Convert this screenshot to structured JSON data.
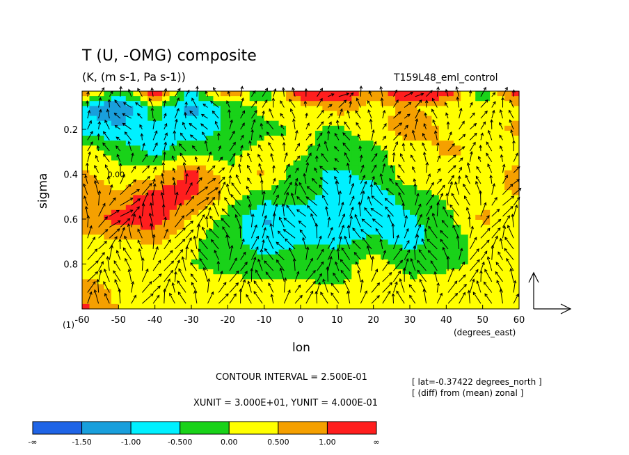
{
  "header": {
    "title": "T (U, -OMG) composite",
    "units": "(K, (m s-1, Pa s-1))",
    "run_name": "T159L48_eml_control"
  },
  "info": {
    "contour_interval": "CONTOUR INTERVAL = 2.500E-01",
    "vector_units": "XUNIT = 3.000E+01, YUNIT = 4.000E-01",
    "lat_note": "[ lat=-0.37422 degrees_north ]",
    "diff_note": "[ (diff) from (mean) zonal ]",
    "x_unit_label": "(degrees_east)",
    "y_first_label": "(1)"
  },
  "colors": {
    "levels": [
      "#1f64e6",
      "#199fdc",
      "#00f0ff",
      "#19d219",
      "#ffff00",
      "#f5a000",
      "#ff1e1e"
    ],
    "background": "#ffffff"
  },
  "chart_data": {
    "type": "heatmap",
    "title": "T (U, -OMG) composite",
    "subtitle": "(K, (m s-1, Pa s-1))",
    "xlabel": "lon",
    "ylabel": "sigma",
    "xlim": [
      -60,
      60
    ],
    "ylim": [
      1.0,
      0.03
    ],
    "x_ticks": [
      "-60",
      "-50",
      "-40",
      "-30",
      "-20",
      "-10",
      "0",
      "10",
      "20",
      "30",
      "40",
      "50",
      "60"
    ],
    "y_ticks": [
      "0.2",
      "0.4",
      "0.6",
      "0.8"
    ],
    "grid": false,
    "colorbar": {
      "labels": [
        "-∞",
        "-1.50",
        "-1.00",
        "-0.500",
        "0.00",
        "0.500",
        "1.00",
        "∞"
      ],
      "boundaries": [
        -1.5,
        -1.0,
        -0.5,
        0.0,
        0.5,
        1.0
      ]
    },
    "x_values": [
      -60,
      -50,
      -40,
      -30,
      -20,
      -10,
      0,
      10,
      20,
      30,
      40,
      50,
      60
    ],
    "y_values": [
      0.05,
      0.1,
      0.2,
      0.3,
      0.4,
      0.5,
      0.6,
      0.7,
      0.8,
      0.9,
      1.0
    ],
    "values": [
      [
        0.8,
        -0.6,
        1.2,
        -0.8,
        0.9,
        -0.4,
        1.4,
        1.6,
        0.7,
        1.5,
        1.2,
        -0.3,
        1.3
      ],
      [
        -0.9,
        -1.6,
        -0.2,
        -1.2,
        -0.4,
        0.2,
        0.1,
        0.8,
        0.3,
        0.6,
        0.2,
        0.1,
        0.4
      ],
      [
        -0.7,
        -0.9,
        -0.6,
        -0.8,
        -0.4,
        -0.2,
        0.1,
        -0.1,
        0.2,
        0.9,
        0.4,
        0.3,
        0.6
      ],
      [
        0.3,
        -0.2,
        -0.6,
        -0.2,
        -0.3,
        0.3,
        0.1,
        -0.3,
        -0.1,
        0.2,
        0.6,
        0.4,
        0.2
      ],
      [
        0.6,
        0.2,
        0.3,
        1.2,
        0.2,
        0.6,
        -0.4,
        -0.6,
        -0.4,
        0.3,
        0.3,
        0.2,
        0.7
      ],
      [
        0.9,
        0.6,
        1.4,
        1.1,
        0.3,
        -0.3,
        -0.4,
        -0.6,
        -0.7,
        -0.3,
        0.1,
        0.4,
        0.5
      ],
      [
        0.8,
        1.2,
        1.3,
        0.4,
        -0.2,
        -1.1,
        -0.6,
        -0.8,
        -0.7,
        -0.6,
        -0.2,
        0.6,
        0.2
      ],
      [
        0.3,
        0.4,
        0.6,
        0.1,
        -0.3,
        -0.8,
        -0.5,
        -0.6,
        -0.4,
        -0.7,
        -0.3,
        0.2,
        0.1
      ],
      [
        0.1,
        0.3,
        0.2,
        0.0,
        -0.1,
        -0.3,
        -0.2,
        -0.3,
        0.3,
        -0.2,
        -0.1,
        0.1,
        0.0
      ],
      [
        0.8,
        0.3,
        0.4,
        0.1,
        0.1,
        0.2,
        0.1,
        0.0,
        0.3,
        0.1,
        0.2,
        0.2,
        0.1
      ],
      [
        1.1,
        0.5,
        0.3,
        0.2,
        0.3,
        0.1,
        0.0,
        0.1,
        0.2,
        0.1,
        0.1,
        0.0,
        0.2
      ]
    ],
    "labeled_contours": [
      "0.00"
    ],
    "reference_vector": "XUNIT 3.000E+01 / YUNIT 4.000E-01"
  }
}
